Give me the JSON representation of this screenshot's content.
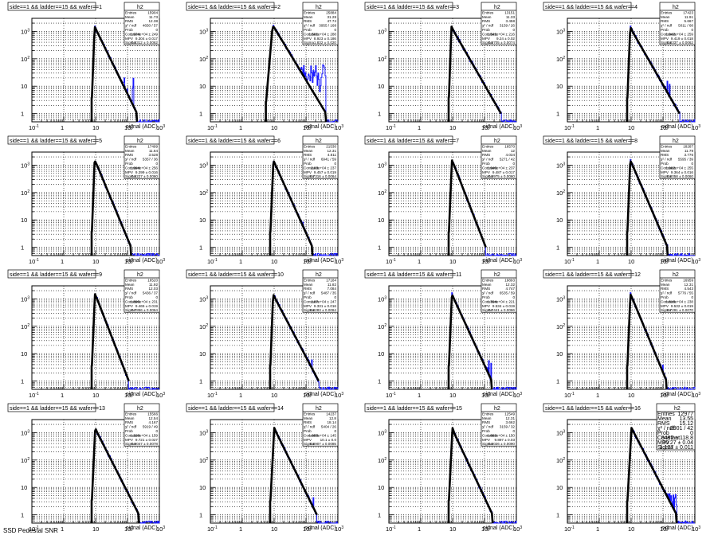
{
  "page": {
    "footer": "SSD Pedestal SNR"
  },
  "chart_data": [
    {
      "type": "histogram",
      "title": "side==1 && ladder==15 && wafer==1",
      "xlabel": "signal (ADC)",
      "xscale": "log",
      "yscale": "log",
      "xlim": [
        0.1,
        1000
      ],
      "ylim": [
        0.5,
        3000
      ],
      "stats": {
        "name": "h2",
        "Entries": "15904",
        "Mean": "11.73",
        "RMS": "12.38",
        "chi2ndf": "4650 / 57",
        "Prob": "0",
        "Constant": "1.974e+04 ± 249",
        "MPV": "9.304 ± 0.017",
        "Sigma": "0.8312 ± 0.0062"
      },
      "start": 7.5,
      "peak": {
        "x": 9.3,
        "y": 1500
      },
      "shoulder": {
        "x": 11.5,
        "y": 900
      },
      "tail_end": {
        "x": 200,
        "y": 1
      },
      "noise": {
        "from": 22,
        "to": 160,
        "level": 20,
        "density": 0.6
      }
    },
    {
      "type": "histogram",
      "title": "side==1 && ladder==15 && wafer==2",
      "xlabel": "signal (ADC)",
      "xscale": "log",
      "yscale": "log",
      "xlim": [
        0.1,
        1000
      ],
      "ylim": [
        0.5,
        3000
      ],
      "stats": {
        "name": "h2",
        "Entries": "25884",
        "Mean": "31.28",
        "RMS": "47.74",
        "chi2ndf": "3955 / 168",
        "Prob": "0",
        "Constant": "1.501e+04 ± 288",
        "MPV": "8.923 ± 0.186",
        "Sigma": "1.832 ± 0.020"
      },
      "start": 5.5,
      "peak": {
        "x": 8.9,
        "y": 1500
      },
      "shoulder": {
        "x": 10,
        "y": 1400
      },
      "tail_end": {
        "x": 430,
        "y": 1
      },
      "noise": {
        "from": 60,
        "to": 430,
        "level": 60,
        "density": 1.0
      }
    },
    {
      "type": "histogram",
      "title": "side==1 && ladder==15 && wafer==3",
      "xlabel": "signal (ADC)",
      "xscale": "log",
      "yscale": "log",
      "xlim": [
        0.1,
        1000
      ],
      "ylim": [
        0.5,
        3000
      ],
      "stats": {
        "name": "h2",
        "Entries": "13151",
        "Mean": "11.33",
        "RMS": "3.458",
        "chi2ndf": "3159 / 26",
        "Prob": "0",
        "Constant": "1.541e+04 ± 216",
        "MPV": "9.24 ± 0.02",
        "Sigma": "0.8705 ± 0.0074"
      },
      "start": 7.5,
      "peak": {
        "x": 9.2,
        "y": 1500
      },
      "shoulder": {
        "x": 11.5,
        "y": 900
      },
      "tail_end": {
        "x": 330,
        "y": 1
      },
      "noise": {
        "from": 20,
        "to": 130,
        "level": 8,
        "density": 0.4
      }
    },
    {
      "type": "histogram",
      "title": "side==1 && ladder==15 && wafer==4",
      "xlabel": "signal (ADC)",
      "xscale": "log",
      "yscale": "log",
      "xlim": [
        0.1,
        1000
      ],
      "ylim": [
        0.5,
        3000
      ],
      "stats": {
        "name": "h2",
        "Entries": "17423",
        "Mean": "11.91",
        "RMS": "5.667",
        "chi2ndf": "5011 / 68",
        "Prob": "0",
        "Constant": "1.942e+04 ± 259",
        "MPV": "9.419 ± 0.018",
        "Sigma": "0.8337 ± 0.0062"
      },
      "start": 7.5,
      "peak": {
        "x": 9.4,
        "y": 1500
      },
      "shoulder": {
        "x": 11.5,
        "y": 900
      },
      "tail_end": {
        "x": 330,
        "y": 1
      },
      "noise": {
        "from": 22,
        "to": 170,
        "level": 15,
        "density": 0.6
      }
    },
    {
      "type": "histogram",
      "title": "side==1 && ladder==15 && wafer==5",
      "xlabel": "signal (ADC)",
      "xscale": "log",
      "yscale": "log",
      "xlim": [
        0.1,
        1000
      ],
      "ylim": [
        0.5,
        3000
      ],
      "stats": {
        "name": "h2",
        "Entries": "17499",
        "Mean": "11.64",
        "RMS": "3.528",
        "chi2ndf": "5357 / 36",
        "Prob": "0",
        "Constant": "1.994e+04 ± 256",
        "MPV": "9.299 ± 0.016",
        "Sigma": "0.8227 ± 0.0060"
      },
      "start": 7.5,
      "peak": {
        "x": 9.3,
        "y": 1500
      },
      "shoulder": {
        "x": 11.5,
        "y": 900
      },
      "tail_end": {
        "x": 130,
        "y": 1
      },
      "noise": {
        "from": 0,
        "to": 0,
        "level": 0,
        "density": 0
      }
    },
    {
      "type": "histogram",
      "title": "side==1 && ladder==15 && wafer==6",
      "xlabel": "signal (ADC)",
      "xscale": "log",
      "yscale": "log",
      "xlim": [
        0.1,
        1000
      ],
      "ylim": [
        0.5,
        3000
      ],
      "stats": {
        "name": "h2",
        "Entries": "21530",
        "Mean": "12.31",
        "RMS": "4.811",
        "chi2ndf": "6941 / 59",
        "Prob": "0",
        "Constant": "2.03e+04 ± 237",
        "MPV": "9.457 ± 0.019",
        "Sigma": "0.7316 ± 0.0064"
      },
      "start": 7.5,
      "peak": {
        "x": 9.5,
        "y": 1500
      },
      "shoulder": {
        "x": 11.5,
        "y": 900
      },
      "tail_end": {
        "x": 160,
        "y": 1
      },
      "noise": {
        "from": 22,
        "to": 80,
        "level": 10,
        "density": 0.5
      }
    },
    {
      "type": "histogram",
      "title": "side==1 && ladder==15 && wafer==7",
      "xlabel": "signal (ADC)",
      "xscale": "log",
      "yscale": "log",
      "xlim": [
        0.1,
        1000
      ],
      "ylim": [
        0.5,
        3000
      ],
      "stats": {
        "name": "h2",
        "Entries": "16570",
        "Mean": "12",
        "RMS": "4.034",
        "chi2ndf": "5271 / 42",
        "Prob": "0",
        "Constant": "1.946e+04 ± 237",
        "MPV": "9.487 ± 0.017",
        "Sigma": "0.8975 ± 0.0060"
      },
      "start": 7.5,
      "peak": {
        "x": 9.5,
        "y": 1500
      },
      "shoulder": {
        "x": 11.5,
        "y": 900
      },
      "tail_end": {
        "x": 110,
        "y": 1
      },
      "noise": {
        "from": 24,
        "to": 50,
        "level": 5,
        "density": 0.4
      }
    },
    {
      "type": "histogram",
      "title": "side==1 && ladder==15 && wafer==8",
      "xlabel": "signal (ADC)",
      "xscale": "log",
      "yscale": "log",
      "xlim": [
        0.1,
        1000
      ],
      "ylim": [
        0.5,
        3000
      ],
      "stats": {
        "name": "h2",
        "Entries": "18287",
        "Mean": "11.79",
        "RMS": "3.776",
        "chi2ndf": "5595 / 39",
        "Prob": "0",
        "Constant": "1.982e+04 ± 255",
        "MPV": "9.364 ± 0.016",
        "Sigma": "0.8058 ± 0.0060"
      },
      "start": 7.5,
      "peak": {
        "x": 9.4,
        "y": 1500
      },
      "shoulder": {
        "x": 11.5,
        "y": 900
      },
      "tail_end": {
        "x": 140,
        "y": 1
      },
      "noise": {
        "from": 24,
        "to": 80,
        "level": 8,
        "density": 0.5
      }
    },
    {
      "type": "histogram",
      "title": "side==1 && ladder==15 && wafer==9",
      "xlabel": "signal (ADC)",
      "xscale": "log",
      "yscale": "log",
      "xlim": [
        0.1,
        1000
      ],
      "ylim": [
        0.5,
        3000
      ],
      "stats": {
        "name": "h2",
        "Entries": "18520",
        "Mean": "11.92",
        "RMS": "12.03",
        "chi2ndf": "5436 / 37",
        "Prob": "0",
        "Constant": "1.896e+04 ± 231",
        "MPV": "9.465 ± 0.019",
        "Sigma": "0.7856 ± 0.0064"
      },
      "start": 7.5,
      "peak": {
        "x": 9.5,
        "y": 1500
      },
      "shoulder": {
        "x": 11.5,
        "y": 900
      },
      "tail_end": {
        "x": 110,
        "y": 1
      },
      "noise": {
        "from": 0,
        "to": 0,
        "level": 0,
        "density": 0
      }
    },
    {
      "type": "histogram",
      "title": "side==1 && ladder==15 && wafer==10",
      "xlabel": "signal (ADC)",
      "xscale": "log",
      "yscale": "log",
      "xlim": [
        0.1,
        1000
      ],
      "ylim": [
        0.5,
        3000
      ],
      "stats": {
        "name": "h2",
        "Entries": "17184",
        "Mean": "11.82",
        "RMS": "7.084",
        "chi2ndf": "5487 / 35",
        "Prob": "0",
        "Constant": "1.87e+04 ± 247",
        "MPV": "9.331 ± 0.016",
        "Sigma": "0.8283 ± 0.0064"
      },
      "start": 7.5,
      "peak": {
        "x": 9.3,
        "y": 1500
      },
      "shoulder": {
        "x": 11.5,
        "y": 900
      },
      "tail_end": {
        "x": 250,
        "y": 1
      },
      "noise": {
        "from": 22,
        "to": 160,
        "level": 5,
        "density": 0.5
      }
    },
    {
      "type": "histogram",
      "title": "side==1 && ladder==15 && wafer==11",
      "xlabel": "signal (ADC)",
      "xscale": "log",
      "yscale": "log",
      "xlim": [
        0.1,
        1000
      ],
      "ylim": [
        0.5,
        3000
      ],
      "stats": {
        "name": "h2",
        "Entries": "19893",
        "Mean": "12.32",
        "RMS": "4.747",
        "chi2ndf": "6535 / 59",
        "Prob": "0",
        "Constant": "1.764e+04 ± 221",
        "MPV": "9.534 ± 0.019",
        "Sigma": "0.7441 ± 0.0066"
      },
      "start": 7.5,
      "peak": {
        "x": 9.5,
        "y": 1500
      },
      "shoulder": {
        "x": 11.5,
        "y": 900
      },
      "tail_end": {
        "x": 170,
        "y": 1
      },
      "noise": {
        "from": 30,
        "to": 170,
        "level": 6,
        "density": 0.6
      }
    },
    {
      "type": "histogram",
      "title": "side==1 && ladder==15 && wafer==12",
      "xlabel": "signal (ADC)",
      "xscale": "log",
      "yscale": "log",
      "xlim": [
        0.1,
        1000
      ],
      "ylim": [
        0.5,
        3000
      ],
      "stats": {
        "name": "h2",
        "Entries": "16959",
        "Mean": "12.31",
        "RMS": "4.543",
        "chi2ndf": "5776 / 55",
        "Prob": "0",
        "Constant": "1.816e+04 ± 238",
        "MPV": "9.532 ± 0.019",
        "Sigma": "0.7291 ± 0.0070"
      },
      "start": 7.5,
      "peak": {
        "x": 9.5,
        "y": 1500
      },
      "shoulder": {
        "x": 11.5,
        "y": 900
      },
      "tail_end": {
        "x": 130,
        "y": 1
      },
      "noise": {
        "from": 25,
        "to": 130,
        "level": 4,
        "density": 0.5
      }
    },
    {
      "type": "histogram",
      "title": "side==1 && ladder==15 && wafer==13",
      "xlabel": "signal (ADC)",
      "xscale": "log",
      "yscale": "log",
      "xlim": [
        0.1,
        1000
      ],
      "ylim": [
        0.5,
        3000
      ],
      "stats": {
        "name": "h2",
        "Entries": "15566",
        "Mean": "12.54",
        "RMS": "4.167",
        "chi2ndf": "5919 / 49",
        "Prob": "0",
        "Constant": "1.228e+04 ± 159",
        "MPV": "9.721 ± 0.027",
        "Sigma": "0.9047 ± 0.0078"
      },
      "start": 7.5,
      "peak": {
        "x": 9.7,
        "y": 1500
      },
      "shoulder": {
        "x": 11.5,
        "y": 950
      },
      "tail_end": {
        "x": 230,
        "y": 1
      },
      "noise": {
        "from": 24,
        "to": 60,
        "level": 5,
        "density": 0.6
      }
    },
    {
      "type": "histogram",
      "title": "side==1 && ladder==15 && wafer==14",
      "xlabel": "signal (ADC)",
      "xscale": "log",
      "yscale": "log",
      "xlim": [
        0.1,
        1000
      ],
      "ylim": [
        0.5,
        3000
      ],
      "stats": {
        "name": "h2",
        "Entries": "14237",
        "Mean": "12.8",
        "RMS": "18.14",
        "chi2ndf": "5404 / 26",
        "Prob": "0",
        "Constant": "1.955e+04 ± 145",
        "MPV": "10.1 ± 0.0",
        "Sigma": "0.8907 ± 0.0085"
      },
      "start": 7.5,
      "peak": {
        "x": 10.1,
        "y": 1500
      },
      "shoulder": {
        "x": 12,
        "y": 950
      },
      "tail_end": {
        "x": 220,
        "y": 1
      },
      "noise": {
        "from": 26,
        "to": 180,
        "level": 4,
        "density": 0.5
      }
    },
    {
      "type": "histogram",
      "title": "side==1 && ladder==15 && wafer==15",
      "xlabel": "signal (ADC)",
      "xscale": "log",
      "yscale": "log",
      "xlim": [
        0.1,
        1000
      ],
      "ylim": [
        0.5,
        3000
      ],
      "stats": {
        "name": "h2",
        "Entries": "12549",
        "Mean": "12.31",
        "RMS": "3.662",
        "chi2ndf": "3159 / 32",
        "Prob": "0",
        "Constant": "1.882e+04 ± 150",
        "MPV": "9.897 ± 0.03",
        "Sigma": "0.8026 ± 0.0090"
      },
      "start": 7.5,
      "peak": {
        "x": 9.9,
        "y": 1500
      },
      "shoulder": {
        "x": 11.5,
        "y": 900
      },
      "tail_end": {
        "x": 180,
        "y": 1
      },
      "noise": {
        "from": 24,
        "to": 100,
        "level": 6,
        "density": 0.5
      }
    },
    {
      "type": "histogram",
      "title": "side==1 && ladder==15 && wafer==16",
      "xlabel": "signal (ADC)",
      "xscale": "log",
      "yscale": "log",
      "xlim": [
        0.1,
        1000
      ],
      "ylim": [
        0.5,
        3000
      ],
      "stats": {
        "name": "h2",
        "Entries": "12977",
        "Mean": "13.55",
        "RMS": "15.12",
        "chi2ndf": "2901 / 42",
        "Prob": "0",
        "Constant": "8487 ± 118.8",
        "MPV": "10.27 ± 0.04",
        "Sigma": "1.127 ± 0.011"
      },
      "start": 7.5,
      "peak": {
        "x": 10.3,
        "y": 1500
      },
      "shoulder": {
        "x": 12.5,
        "y": 950
      },
      "tail_end": {
        "x": 270,
        "y": 1
      },
      "noise": {
        "from": 30,
        "to": 270,
        "level": 5,
        "density": 0.6
      }
    }
  ]
}
